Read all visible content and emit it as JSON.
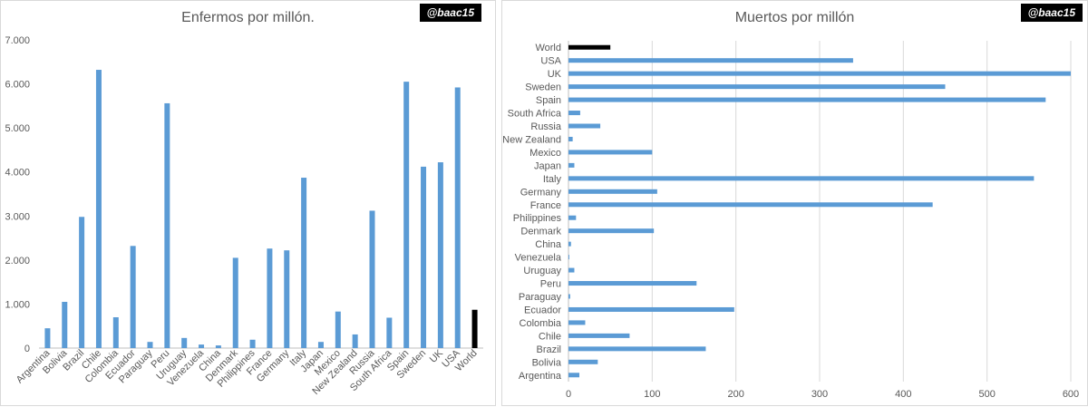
{
  "charts": [
    {
      "title": "Enfermos por millón.",
      "handle": "@baac15",
      "chart_data": {
        "type": "bar",
        "orientation": "vertical",
        "categories": [
          "Argentina",
          "Bolivia",
          "Brazil",
          "Chile",
          "Colombia",
          "Ecuador",
          "Paraguay",
          "Peru",
          "Uruguay",
          "Venezuela",
          "China",
          "Denmark",
          "Philippines",
          "France",
          "Germany",
          "Italy",
          "Japan",
          "Mexico",
          "New Zealand",
          "Russia",
          "South Africa",
          "Spain",
          "Sweden",
          "UK",
          "USA",
          "World"
        ],
        "values": [
          450,
          1050,
          2980,
          6320,
          700,
          2320,
          140,
          5560,
          230,
          80,
          60,
          2050,
          190,
          2260,
          2220,
          3870,
          140,
          830,
          310,
          3120,
          690,
          6050,
          4120,
          4220,
          5920,
          870
        ],
        "highlight_category": "World",
        "ylim": [
          0,
          7000
        ],
        "yticks": [
          "0",
          "1.000",
          "2.000",
          "3.000",
          "4.000",
          "5.000",
          "6.000",
          "7.000"
        ],
        "grid": false,
        "colors": {
          "bar": "#5b9bd5",
          "highlight": "#000000"
        }
      }
    },
    {
      "title": "Muertos por millón",
      "handle": "@baac15",
      "chart_data": {
        "type": "bar",
        "orientation": "horizontal",
        "categories": [
          "World",
          "USA",
          "UK",
          "Sweden",
          "Spain",
          "South Africa",
          "Russia",
          "New Zealand",
          "Mexico",
          "Japan",
          "Italy",
          "Germany",
          "France",
          "Philippines",
          "Denmark",
          "China",
          "Venezuela",
          "Uruguay",
          "Peru",
          "Paraguay",
          "Ecuador",
          "Colombia",
          "Chile",
          "Brazil",
          "Bolivia",
          "Argentina"
        ],
        "values": [
          50,
          340,
          600,
          450,
          570,
          14,
          38,
          5,
          100,
          7,
          556,
          106,
          435,
          9,
          102,
          3,
          1,
          7,
          153,
          2,
          198,
          20,
          73,
          164,
          35,
          13
        ],
        "highlight_category": "World",
        "xlim": [
          0,
          600
        ],
        "xticks": [
          "0",
          "100",
          "200",
          "300",
          "400",
          "500",
          "600"
        ],
        "grid": true,
        "colors": {
          "bar": "#5b9bd5",
          "highlight": "#000000",
          "grid": "#d9d9d9"
        }
      }
    }
  ]
}
